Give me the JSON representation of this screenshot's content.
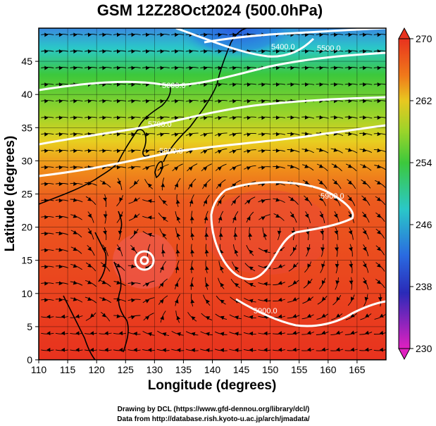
{
  "title": "GSM 12Z28Oct2024 (500.0hPa)",
  "xlabel": "Longitude (degrees)",
  "ylabel": "Latitude  (degrees)",
  "x_ticks": [
    "110",
    "115",
    "120",
    "125",
    "130",
    "135",
    "140",
    "145",
    "150",
    "155",
    "160",
    "165"
  ],
  "y_ticks": [
    "0",
    "5",
    "10",
    "15",
    "20",
    "25",
    "30",
    "35",
    "40",
    "45"
  ],
  "colorbar": {
    "labels": [
      "270",
      "262",
      "254",
      "246",
      "238",
      "230"
    ],
    "min": 230,
    "max": 270
  },
  "contour_labels": [
    "5900.0",
    "5800.0",
    "5600.0",
    "5700.0",
    "5900.0",
    "5400.0",
    "5500.0"
  ],
  "credits": {
    "line1": "Drawing by DCL (https://www.gfd-dennou.org/library/dcl/)",
    "line2": "Data from http://database.rish.kyoto-u.ac.jp/arch/jmadata/"
  },
  "colors": {
    "warm": "#e8321e",
    "orange": "#f07a1a",
    "yellow": "#e8d020",
    "green": "#3cc83c",
    "cyan": "#2ac8c8",
    "blue": "#2a6ae0",
    "contour": "#ffffff"
  },
  "map_data": {
    "lon_range": [
      110,
      170
    ],
    "lat_range": [
      0,
      50
    ],
    "typhoon_center": {
      "lon": 128,
      "lat": 16.5
    },
    "high_center": {
      "lon": 150,
      "lat": 21
    }
  }
}
